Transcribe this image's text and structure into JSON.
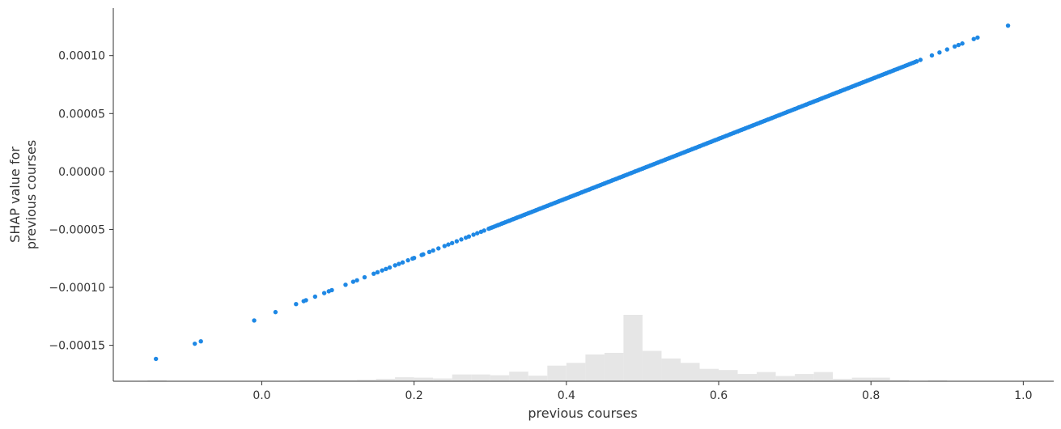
{
  "chart_data": {
    "type": "scatter",
    "title": "",
    "xlabel": "previous courses",
    "ylabel_lines": [
      "SHAP value for",
      "previous courses"
    ],
    "xlim": [
      -0.195,
      1.04
    ],
    "ylim": [
      -0.000181,
      0.000141
    ],
    "x_ticks": [
      0.0,
      0.2,
      0.4,
      0.6,
      0.8,
      1.0
    ],
    "x_tick_labels": [
      "0.0",
      "0.2",
      "0.4",
      "0.6",
      "0.8",
      "1.0"
    ],
    "y_ticks": [
      0.0001,
      5e-05,
      0.0,
      -5e-05,
      -0.0001,
      -0.00015
    ],
    "y_tick_labels": [
      "0.00010",
      "0.00005",
      "0.00000",
      "−0.00005",
      "−0.00010",
      "−0.00015"
    ],
    "grid": false,
    "point_color": "#1E88E5",
    "histogram_color": "#E6E6E6",
    "axis_color": "#333333",
    "relation": {
      "slope": 0.000257,
      "intercept": -0.000126
    },
    "x": [
      -0.139,
      -0.088,
      -0.08,
      -0.01,
      0.018,
      0.045,
      0.055,
      0.058,
      0.07,
      0.082,
      0.088,
      0.092,
      0.11,
      0.12,
      0.125,
      0.135,
      0.147,
      0.152,
      0.158,
      0.163,
      0.168,
      0.175,
      0.18,
      0.185,
      0.192,
      0.198,
      0.2,
      0.21,
      0.212,
      0.22,
      0.225,
      0.232,
      0.24,
      0.245,
      0.25,
      0.256,
      0.262,
      0.268,
      0.272,
      0.278,
      0.283,
      0.288,
      0.292,
      0.298,
      0.302,
      0.31,
      0.315,
      0.32,
      0.325,
      0.33,
      0.335,
      0.34,
      0.345,
      0.35,
      0.355,
      0.36,
      0.365,
      0.37,
      0.375,
      0.38,
      0.385,
      0.39,
      0.395,
      0.4,
      0.405,
      0.41,
      0.415,
      0.42,
      0.425,
      0.43,
      0.435,
      0.44,
      0.445,
      0.45,
      0.455,
      0.46,
      0.465,
      0.47,
      0.475,
      0.48,
      0.485,
      0.49,
      0.495,
      0.5,
      0.505,
      0.51,
      0.515,
      0.52,
      0.525,
      0.53,
      0.535,
      0.54,
      0.545,
      0.55,
      0.555,
      0.56,
      0.565,
      0.57,
      0.575,
      0.58,
      0.585,
      0.59,
      0.595,
      0.6,
      0.605,
      0.61,
      0.615,
      0.62,
      0.625,
      0.63,
      0.635,
      0.64,
      0.645,
      0.65,
      0.655,
      0.66,
      0.665,
      0.67,
      0.675,
      0.68,
      0.69,
      0.7,
      0.705,
      0.71,
      0.715,
      0.72,
      0.725,
      0.73,
      0.735,
      0.74,
      0.745,
      0.75,
      0.755,
      0.76,
      0.765,
      0.77,
      0.775,
      0.78,
      0.785,
      0.79,
      0.795,
      0.8,
      0.805,
      0.81,
      0.815,
      0.82,
      0.825,
      0.83,
      0.835,
      0.86,
      0.865,
      0.88,
      0.89,
      0.9,
      0.91,
      0.915,
      0.92,
      0.935,
      0.94,
      0.98
    ],
    "histogram": {
      "bin_width": 0.025,
      "bins": [
        {
          "x0": -0.15,
          "count": 2
        },
        {
          "x0": -0.1,
          "count": 1
        },
        {
          "x0": -0.025,
          "count": 1
        },
        {
          "x0": 0.05,
          "count": 3
        },
        {
          "x0": 0.075,
          "count": 3
        },
        {
          "x0": 0.1,
          "count": 3
        },
        {
          "x0": 0.125,
          "count": 4
        },
        {
          "x0": 0.15,
          "count": 6
        },
        {
          "x0": 0.175,
          "count": 10
        },
        {
          "x0": 0.2,
          "count": 9
        },
        {
          "x0": 0.225,
          "count": 7
        },
        {
          "x0": 0.25,
          "count": 17
        },
        {
          "x0": 0.275,
          "count": 17
        },
        {
          "x0": 0.3,
          "count": 15
        },
        {
          "x0": 0.325,
          "count": 24
        },
        {
          "x0": 0.35,
          "count": 14
        },
        {
          "x0": 0.375,
          "count": 39
        },
        {
          "x0": 0.4,
          "count": 46
        },
        {
          "x0": 0.425,
          "count": 67
        },
        {
          "x0": 0.45,
          "count": 71
        },
        {
          "x0": 0.475,
          "count": 166
        },
        {
          "x0": 0.5,
          "count": 76
        },
        {
          "x0": 0.525,
          "count": 57
        },
        {
          "x0": 0.55,
          "count": 46
        },
        {
          "x0": 0.575,
          "count": 31
        },
        {
          "x0": 0.6,
          "count": 28
        },
        {
          "x0": 0.625,
          "count": 18
        },
        {
          "x0": 0.65,
          "count": 23
        },
        {
          "x0": 0.675,
          "count": 13
        },
        {
          "x0": 0.7,
          "count": 18
        },
        {
          "x0": 0.725,
          "count": 23
        },
        {
          "x0": 0.75,
          "count": 6
        },
        {
          "x0": 0.775,
          "count": 9
        },
        {
          "x0": 0.8,
          "count": 9
        },
        {
          "x0": 0.825,
          "count": 3
        },
        {
          "x0": 0.875,
          "count": 2
        },
        {
          "x0": 0.9,
          "count": 1
        },
        {
          "x0": 0.925,
          "count": 1
        },
        {
          "x0": 0.975,
          "count": 1
        }
      ]
    }
  }
}
